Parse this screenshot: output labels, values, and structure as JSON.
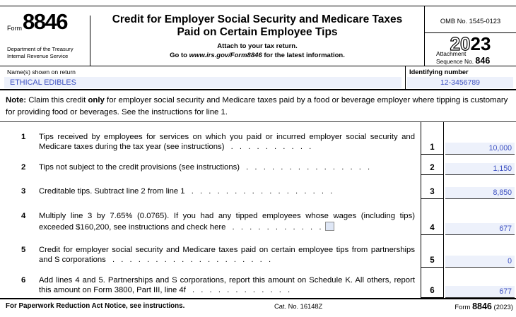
{
  "accent_colors": {
    "field_bg": "#edf1fb",
    "field_text": "#3d50c2",
    "line_color": "#000000"
  },
  "header": {
    "form_word": "Form",
    "form_number": "8846",
    "agency_line1": "Department of the Treasury",
    "agency_line2": "Internal Revenue Service",
    "title_line1": "Credit for Employer Social Security and Medicare Taxes",
    "title_line2": "Paid on Certain Employee Tips",
    "attach_note": "Attach to your tax return.",
    "goto_prefix": "Go to ",
    "goto_url": "www.irs.gov/Form8846",
    "goto_suffix": " for the latest information.",
    "omb": "OMB No. 1545-0123",
    "year_outline": "20",
    "year_solid": "23",
    "attachment_label": "Attachment",
    "sequence_label": "Sequence No. ",
    "sequence_number": "846"
  },
  "identity": {
    "name_label": "Name(s) shown on return",
    "name_value": "ETHICAL EDIBLES",
    "id_label": "Identifying number",
    "id_value": "12-3456789"
  },
  "note": {
    "bold1": "Note:",
    "text1": " Claim this credit ",
    "bold2": "only",
    "text2": " for employer social security and Medicare taxes paid by a food or beverage employer where tipping is customary for providing food or beverages. See the instructions for line 1."
  },
  "lines": [
    {
      "num": "1",
      "desc": "Tips received by employees for services on which you paid or incurred employer social security and Medicare taxes during the tax year (see instructions)",
      "dots": " . . . . . . . . . .",
      "value": "10,000"
    },
    {
      "num": "2",
      "desc": "Tips not subject to the credit provisions (see instructions)",
      "dots": " . . . . . . . . . . . . . . .",
      "value": "1,150"
    },
    {
      "num": "3",
      "desc": "Creditable tips. Subtract line 2 from line 1",
      "dots": " . . . . . . . . . . . . . . . . .",
      "value": "8,850"
    },
    {
      "num": "4",
      "desc": "Multiply line 3 by 7.65% (0.0765). If you had any tipped employees whose wages (including tips) exceeded $160,200, see instructions and check here",
      "dots": " . . . . . . . . . . .",
      "value": "677"
    },
    {
      "num": "5",
      "desc": "Credit for employer social security and Medicare taxes paid on certain employee tips from partnerships and S corporations",
      "dots": " . . . . . . . . . . . . . . . . . . .",
      "value": "0"
    },
    {
      "num": "6",
      "desc": "Add lines 4 and 5. Partnerships and S corporations, report this amount on Schedule K. All others, report this amount on Form 3800, Part III, line 4f",
      "dots": " . . . . . . . . . . . .",
      "value": "677"
    }
  ],
  "footer": {
    "left": "For Paperwork Reduction Act Notice, see instructions.",
    "cat": "Cat. No. 16148Z",
    "form_word": "Form ",
    "form_number": "8846",
    "year": " (2023)"
  }
}
